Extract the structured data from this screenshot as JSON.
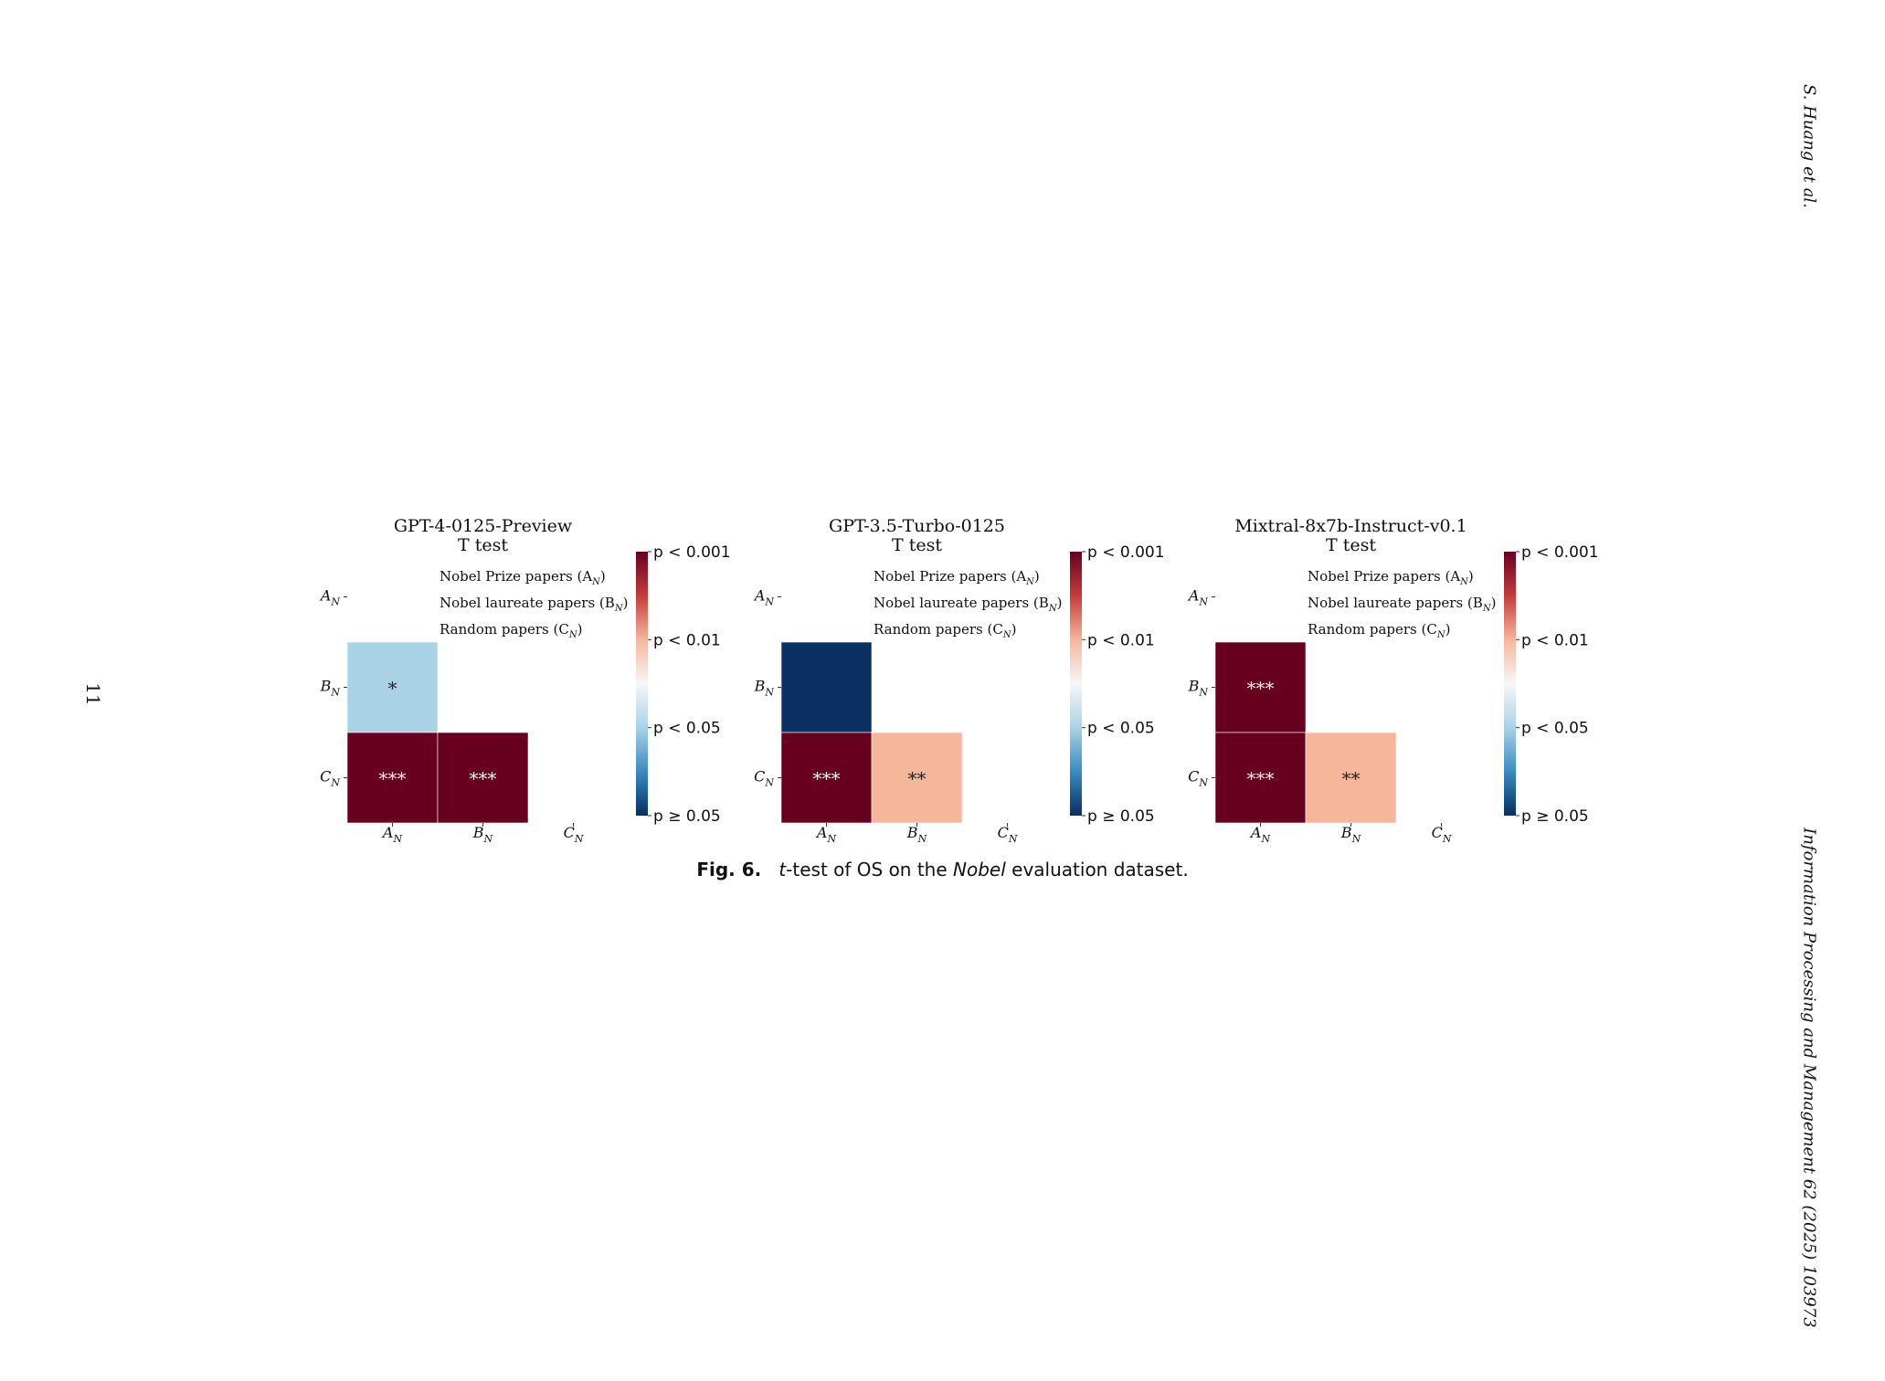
{
  "header": {
    "authors": "S. Huang et al.",
    "journal": "Information Processing and Management 62 (2025) 103973",
    "page_number": "11"
  },
  "caption": {
    "label": "Fig. 6.",
    "t": "t",
    "text_a": "-test of OS on the ",
    "italic": "Nobel",
    "text_b": " evaluation dataset."
  },
  "legend": {
    "A": "Nobel Prize papers (A",
    "B": "Nobel laureate papers (B",
    "C": "Random papers (C",
    "sub": "N",
    "close": ")"
  },
  "colorbar_ticks": [
    "p < 0.001",
    "p < 0.01",
    "p < 0.05",
    "p ≥ 0.05"
  ],
  "colors": {
    "p_lt_0001": "#67001f",
    "p_lt_001": "#f5b69a",
    "p_lt_005": "#a9d2e6",
    "p_ge_005": "#0b3064",
    "colorbar_stops": [
      "#67001f",
      "#c43c3c",
      "#f5b69a",
      "#f7f7f7",
      "#a9d2e6",
      "#3a8bc1",
      "#053061"
    ]
  },
  "chart_data": [
    {
      "type": "heatmap",
      "title": "GPT-4-0125-Preview",
      "subtitle": "T test",
      "rows": [
        "A",
        "B",
        "C"
      ],
      "cols": [
        "A",
        "B",
        "C"
      ],
      "cells": [
        {
          "row": "B",
          "col": "A",
          "level": "p < 0.05",
          "stars": "*"
        },
        {
          "row": "C",
          "col": "A",
          "level": "p < 0.001",
          "stars": "***"
        },
        {
          "row": "C",
          "col": "B",
          "level": "p < 0.001",
          "stars": "***"
        }
      ]
    },
    {
      "type": "heatmap",
      "title": "GPT-3.5-Turbo-0125",
      "subtitle": "T test",
      "rows": [
        "A",
        "B",
        "C"
      ],
      "cols": [
        "A",
        "B",
        "C"
      ],
      "cells": [
        {
          "row": "B",
          "col": "A",
          "level": "p ≥ 0.05",
          "stars": ""
        },
        {
          "row": "C",
          "col": "A",
          "level": "p < 0.001",
          "stars": "***"
        },
        {
          "row": "C",
          "col": "B",
          "level": "p < 0.01",
          "stars": "**"
        }
      ]
    },
    {
      "type": "heatmap",
      "title": "Mixtral-8x7b-Instruct-v0.1",
      "subtitle": "T test",
      "rows": [
        "A",
        "B",
        "C"
      ],
      "cols": [
        "A",
        "B",
        "C"
      ],
      "cells": [
        {
          "row": "B",
          "col": "A",
          "level": "p < 0.001",
          "stars": "***"
        },
        {
          "row": "C",
          "col": "A",
          "level": "p < 0.001",
          "stars": "***"
        },
        {
          "row": "C",
          "col": "B",
          "level": "p < 0.01",
          "stars": "**"
        }
      ]
    }
  ]
}
